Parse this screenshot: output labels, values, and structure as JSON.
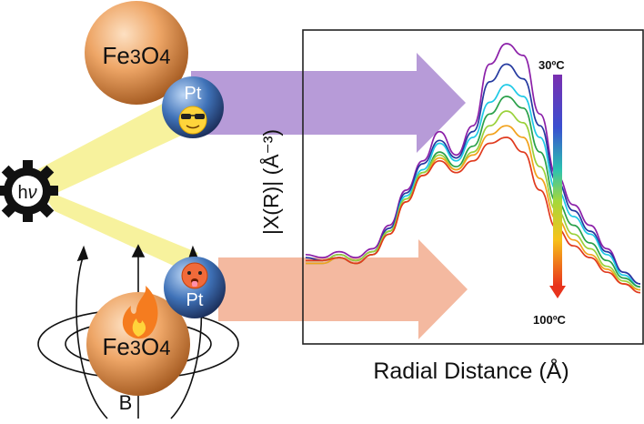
{
  "top_particle": {
    "core_label": "Fe",
    "core_sub": "3",
    "core_tail": "O",
    "core_sub2": "4",
    "shell_label": "Pt"
  },
  "bottom_particle": {
    "core_label": "Fe",
    "core_sub": "3",
    "core_tail": "O",
    "core_sub2": "4",
    "shell_label": "Pt"
  },
  "light_source": {
    "label": "h",
    "label_nu": "ν"
  },
  "field_label": "B",
  "colors": {
    "purple_arrow": "#b79bd8",
    "salmon_arrow": "#f4b9a0",
    "beam": "#f6f08c",
    "iron_oxide": "#e9a163",
    "platinum": "#3b6fb6"
  },
  "chart_data": {
    "type": "line",
    "xlabel": "Radial Distance (Å)",
    "ylabel": "|X(R)| (Å⁻³)",
    "temperature_top": "30ºC",
    "temperature_bottom": "100ºC",
    "x": [
      0,
      0.05,
      0.1,
      0.15,
      0.2,
      0.25,
      0.3,
      0.35,
      0.4,
      0.45,
      0.5,
      0.55,
      0.6,
      0.65,
      0.7,
      0.75,
      0.8,
      0.85,
      0.9,
      0.95,
      1.0
    ],
    "series": [
      {
        "color": "#8b1fa8",
        "values": [
          0.28,
          0.27,
          0.29,
          0.27,
          0.3,
          0.38,
          0.5,
          0.6,
          0.7,
          0.62,
          0.72,
          0.93,
          1.0,
          0.96,
          0.76,
          0.55,
          0.45,
          0.38,
          0.3,
          0.22,
          0.18
        ]
      },
      {
        "color": "#253aa0",
        "values": [
          0.27,
          0.26,
          0.28,
          0.26,
          0.29,
          0.37,
          0.49,
          0.59,
          0.67,
          0.61,
          0.7,
          0.87,
          0.93,
          0.88,
          0.72,
          0.53,
          0.43,
          0.36,
          0.29,
          0.22,
          0.18
        ]
      },
      {
        "color": "#1ec9e6",
        "values": [
          0.25,
          0.25,
          0.27,
          0.25,
          0.28,
          0.36,
          0.48,
          0.57,
          0.66,
          0.6,
          0.68,
          0.8,
          0.86,
          0.82,
          0.68,
          0.5,
          0.41,
          0.35,
          0.28,
          0.21,
          0.17
        ]
      },
      {
        "color": "#2aa04a",
        "values": [
          0.26,
          0.26,
          0.27,
          0.25,
          0.28,
          0.36,
          0.47,
          0.56,
          0.63,
          0.58,
          0.65,
          0.76,
          0.82,
          0.78,
          0.63,
          0.46,
          0.38,
          0.32,
          0.26,
          0.2,
          0.17
        ]
      },
      {
        "color": "#9ad13a",
        "values": [
          0.26,
          0.26,
          0.28,
          0.26,
          0.29,
          0.36,
          0.47,
          0.56,
          0.62,
          0.57,
          0.63,
          0.72,
          0.77,
          0.73,
          0.58,
          0.43,
          0.35,
          0.3,
          0.24,
          0.19,
          0.16
        ]
      },
      {
        "color": "#f2a21c",
        "values": [
          0.25,
          0.25,
          0.27,
          0.25,
          0.28,
          0.35,
          0.46,
          0.55,
          0.61,
          0.57,
          0.62,
          0.69,
          0.72,
          0.68,
          0.54,
          0.4,
          0.33,
          0.28,
          0.23,
          0.18,
          0.16
        ]
      },
      {
        "color": "#e03a1e",
        "values": [
          0.26,
          0.26,
          0.27,
          0.25,
          0.28,
          0.35,
          0.46,
          0.55,
          0.6,
          0.56,
          0.6,
          0.66,
          0.68,
          0.63,
          0.5,
          0.37,
          0.31,
          0.27,
          0.22,
          0.18,
          0.15
        ]
      }
    ]
  }
}
